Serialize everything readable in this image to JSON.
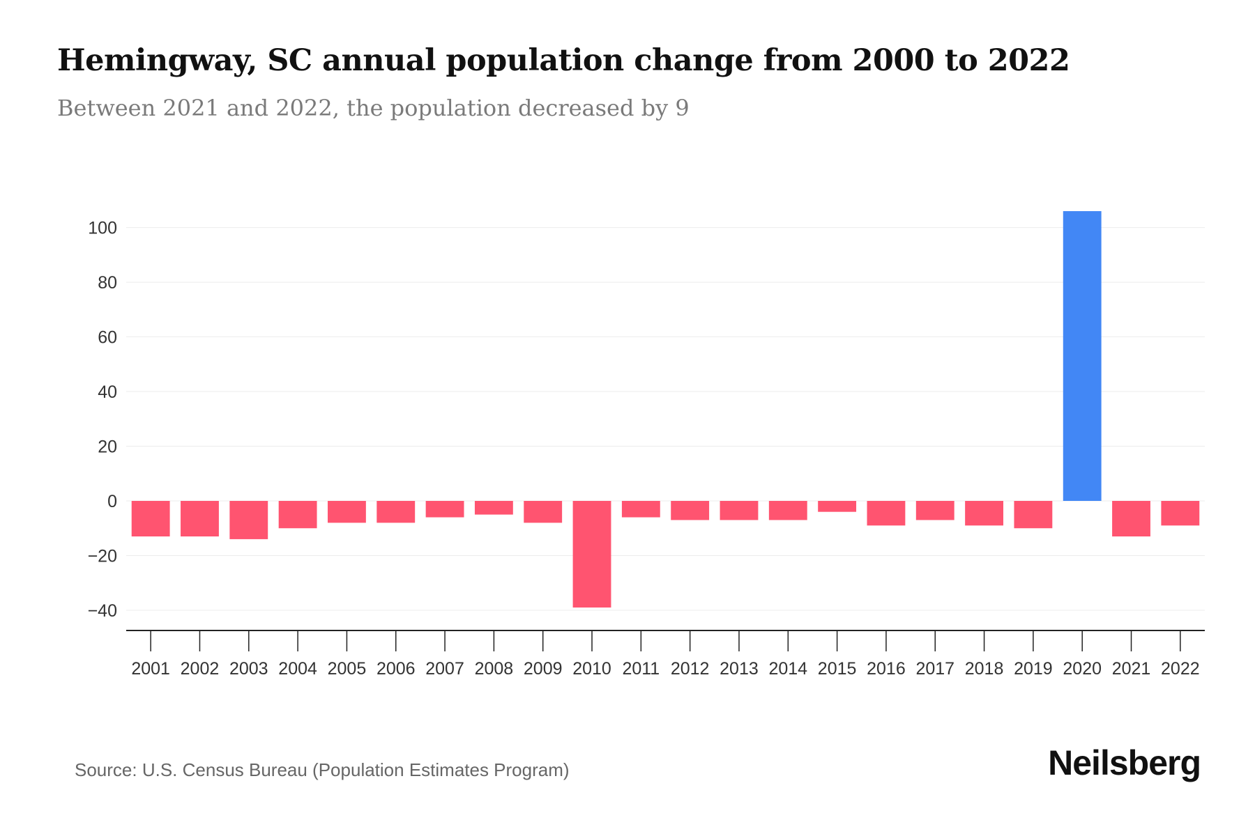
{
  "title": "Hemingway, SC annual population change from 2000 to 2022",
  "subtitle": "Between 2021 and 2022, the population decreased by 9",
  "source": "Source: U.S. Census Bureau (Population Estimates Program)",
  "logo": "Neilsberg",
  "colors": {
    "positive": "#4287f5",
    "negative": "#ff5470"
  },
  "chart_data": {
    "type": "bar",
    "title": "Hemingway, SC annual population change from 2000 to 2022",
    "xlabel": "",
    "ylabel": "",
    "categories": [
      "2001",
      "2002",
      "2003",
      "2004",
      "2005",
      "2006",
      "2007",
      "2008",
      "2009",
      "2010",
      "2011",
      "2012",
      "2013",
      "2014",
      "2015",
      "2016",
      "2017",
      "2018",
      "2019",
      "2020",
      "2021",
      "2022"
    ],
    "values": [
      -13,
      -13,
      -14,
      -10,
      -8,
      -8,
      -6,
      -5,
      -8,
      -39,
      -6,
      -7,
      -7,
      -7,
      -4,
      -9,
      -7,
      -9,
      -10,
      106,
      -13,
      -9
    ],
    "yticks": [
      100,
      80,
      60,
      40,
      20,
      0,
      -20,
      -40
    ],
    "ytick_labels": [
      "100",
      "80",
      "60",
      "40",
      "20",
      "0",
      "−20",
      "−40"
    ],
    "ylim": [
      -47,
      112
    ],
    "grid": true
  }
}
